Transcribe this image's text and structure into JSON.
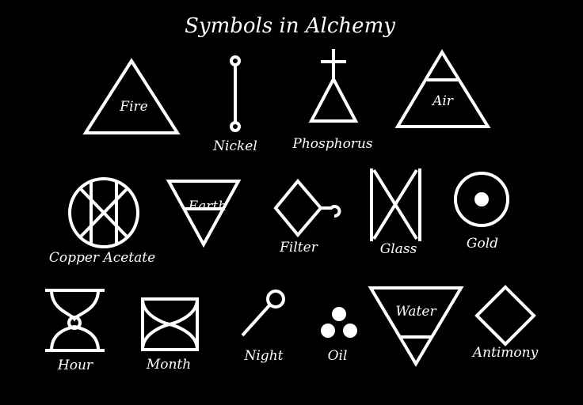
{
  "title": "Symbols in Alchemy",
  "colors": {
    "background": "#000000",
    "foreground": "#ffffff"
  },
  "symbols": {
    "fire": {
      "label": "Fire",
      "icon": "fire-triangle-icon"
    },
    "nickel": {
      "label": "Nickel",
      "icon": "nickel-line-icon"
    },
    "phosphorus": {
      "label": "Phosphorus",
      "icon": "phosphorus-cross-triangle-icon"
    },
    "air": {
      "label": "Air",
      "icon": "air-triangle-icon"
    },
    "copper_acetate": {
      "label": "Copper Acetate",
      "icon": "copper-acetate-wheel-icon"
    },
    "earth": {
      "label": "Earth",
      "icon": "earth-triangle-icon"
    },
    "filter": {
      "label": "Filter",
      "icon": "filter-diamond-icon"
    },
    "glass": {
      "label": "Glass",
      "icon": "glass-cross-icon"
    },
    "gold": {
      "label": "Gold",
      "icon": "gold-circle-dot-icon"
    },
    "hour": {
      "label": "Hour",
      "icon": "hour-glass-icon"
    },
    "month": {
      "label": "Month",
      "icon": "month-box-icon"
    },
    "night": {
      "label": "Night",
      "icon": "night-key-icon"
    },
    "oil": {
      "label": "Oil",
      "icon": "oil-three-dots-icon"
    },
    "water": {
      "label": "Water",
      "icon": "water-triangle-icon"
    },
    "antimony": {
      "label": "Antimony",
      "icon": "antimony-diamond-icon"
    }
  }
}
